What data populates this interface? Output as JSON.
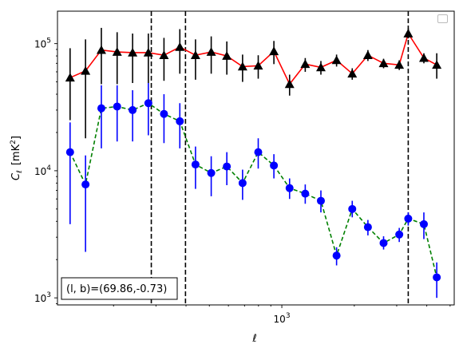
{
  "chart_data": {
    "type": "scatter",
    "x_scale": "log",
    "y_scale": "log",
    "xlabel": "ℓ",
    "ylabel_main": "C",
    "ylabel_sub": "ℓ",
    "ylabel_unit": "[mK",
    "ylabel_unit_sup": "2",
    "ylabel_unit_close": "]",
    "xlim": [
      117,
      5200
    ],
    "ylim": [
      880,
      180000
    ],
    "x_ticks": [
      1000
    ],
    "x_tick_labels": [
      {
        "base": "10",
        "exp": "3"
      }
    ],
    "y_ticks": [
      1000,
      10000,
      100000
    ],
    "y_tick_labels": [
      {
        "base": "10",
        "exp": "3"
      },
      {
        "base": "10",
        "exp": "4"
      },
      {
        "base": "10",
        "exp": "5"
      }
    ],
    "annotation": "(l, b)=(69.86,-0.73)",
    "vlines_x": [
      287,
      398,
      3350
    ],
    "legend": {
      "present": true,
      "entries": [],
      "position": "upper right"
    },
    "grid": false,
    "series": [
      {
        "marker": "triangle",
        "marker_color": "#000000",
        "line_color": "#ff0000",
        "line_style": "solid",
        "points": [
          {
            "x": 132,
            "y": 54000,
            "lo": 25000,
            "hi": 92000
          },
          {
            "x": 153,
            "y": 61000,
            "lo": 18000,
            "hi": 108000
          },
          {
            "x": 178,
            "y": 89000,
            "lo": 48000,
            "hi": 133000
          },
          {
            "x": 207,
            "y": 86000,
            "lo": 48000,
            "hi": 123000
          },
          {
            "x": 240,
            "y": 85000,
            "lo": 49000,
            "hi": 120000
          },
          {
            "x": 279,
            "y": 85000,
            "lo": 49000,
            "hi": 120000
          },
          {
            "x": 324,
            "y": 81000,
            "lo": 51000,
            "hi": 111000
          },
          {
            "x": 377,
            "y": 94000,
            "lo": 58000,
            "hi": 130000
          },
          {
            "x": 438,
            "y": 81000,
            "lo": 52000,
            "hi": 108000
          },
          {
            "x": 509,
            "y": 86000,
            "lo": 58000,
            "hi": 114000
          },
          {
            "x": 591,
            "y": 80000,
            "lo": 57000,
            "hi": 104000
          },
          {
            "x": 687,
            "y": 66000,
            "lo": 50000,
            "hi": 82000
          },
          {
            "x": 798,
            "y": 67000,
            "lo": 53000,
            "hi": 81000
          },
          {
            "x": 927,
            "y": 87000,
            "lo": 69000,
            "hi": 105000
          },
          {
            "x": 1077,
            "y": 48000,
            "lo": 39000,
            "hi": 57000
          },
          {
            "x": 1251,
            "y": 69000,
            "lo": 60000,
            "hi": 77000
          },
          {
            "x": 1453,
            "y": 65000,
            "lo": 57000,
            "hi": 73000
          },
          {
            "x": 1688,
            "y": 74000,
            "lo": 66000,
            "hi": 82000
          },
          {
            "x": 1961,
            "y": 58000,
            "lo": 52000,
            "hi": 64000
          },
          {
            "x": 2278,
            "y": 81000,
            "lo": 73000,
            "hi": 89000
          },
          {
            "x": 2646,
            "y": 70000,
            "lo": 64000,
            "hi": 76000
          },
          {
            "x": 3074,
            "y": 68000,
            "lo": 62000,
            "hi": 74000
          },
          {
            "x": 3350,
            "y": 120000,
            "lo": 110000,
            "hi": 132000
          },
          {
            "x": 3890,
            "y": 77000,
            "lo": 70000,
            "hi": 84000
          },
          {
            "x": 4400,
            "y": 68000,
            "lo": 53000,
            "hi": 84000
          }
        ]
      },
      {
        "marker": "circle",
        "marker_color": "#0000ff",
        "line_color": "#008000",
        "line_style": "dashed",
        "points": [
          {
            "x": 132,
            "y": 14000,
            "lo": 3800,
            "hi": 24000
          },
          {
            "x": 153,
            "y": 7800,
            "lo": 2300,
            "hi": 13200
          },
          {
            "x": 178,
            "y": 31000,
            "lo": 15000,
            "hi": 47000
          },
          {
            "x": 207,
            "y": 32000,
            "lo": 17000,
            "hi": 47000
          },
          {
            "x": 240,
            "y": 30000,
            "lo": 17000,
            "hi": 43000
          },
          {
            "x": 279,
            "y": 34000,
            "lo": 19000,
            "hi": 49000
          },
          {
            "x": 324,
            "y": 28000,
            "lo": 16500,
            "hi": 40000
          },
          {
            "x": 377,
            "y": 24500,
            "lo": 15000,
            "hi": 34000
          },
          {
            "x": 438,
            "y": 11200,
            "lo": 7200,
            "hi": 15500
          },
          {
            "x": 509,
            "y": 9600,
            "lo": 6300,
            "hi": 13000
          },
          {
            "x": 591,
            "y": 10800,
            "lo": 7700,
            "hi": 14000
          },
          {
            "x": 687,
            "y": 8000,
            "lo": 5900,
            "hi": 10200
          },
          {
            "x": 798,
            "y": 14000,
            "lo": 10400,
            "hi": 18000
          },
          {
            "x": 927,
            "y": 11000,
            "lo": 8700,
            "hi": 13500
          },
          {
            "x": 1077,
            "y": 7300,
            "lo": 6000,
            "hi": 8700
          },
          {
            "x": 1251,
            "y": 6600,
            "lo": 5500,
            "hi": 7800
          },
          {
            "x": 1453,
            "y": 5800,
            "lo": 4700,
            "hi": 7000
          },
          {
            "x": 1688,
            "y": 2150,
            "lo": 1800,
            "hi": 2500
          },
          {
            "x": 1961,
            "y": 5000,
            "lo": 4300,
            "hi": 5800
          },
          {
            "x": 2278,
            "y": 3600,
            "lo": 3100,
            "hi": 4100
          },
          {
            "x": 2646,
            "y": 2700,
            "lo": 2400,
            "hi": 3050
          },
          {
            "x": 3074,
            "y": 3150,
            "lo": 2750,
            "hi": 3550
          },
          {
            "x": 3350,
            "y": 4200,
            "lo": 3700,
            "hi": 4700
          },
          {
            "x": 3890,
            "y": 3800,
            "lo": 2900,
            "hi": 4700
          },
          {
            "x": 4400,
            "y": 1450,
            "lo": 1000,
            "hi": 1900
          }
        ]
      }
    ]
  }
}
